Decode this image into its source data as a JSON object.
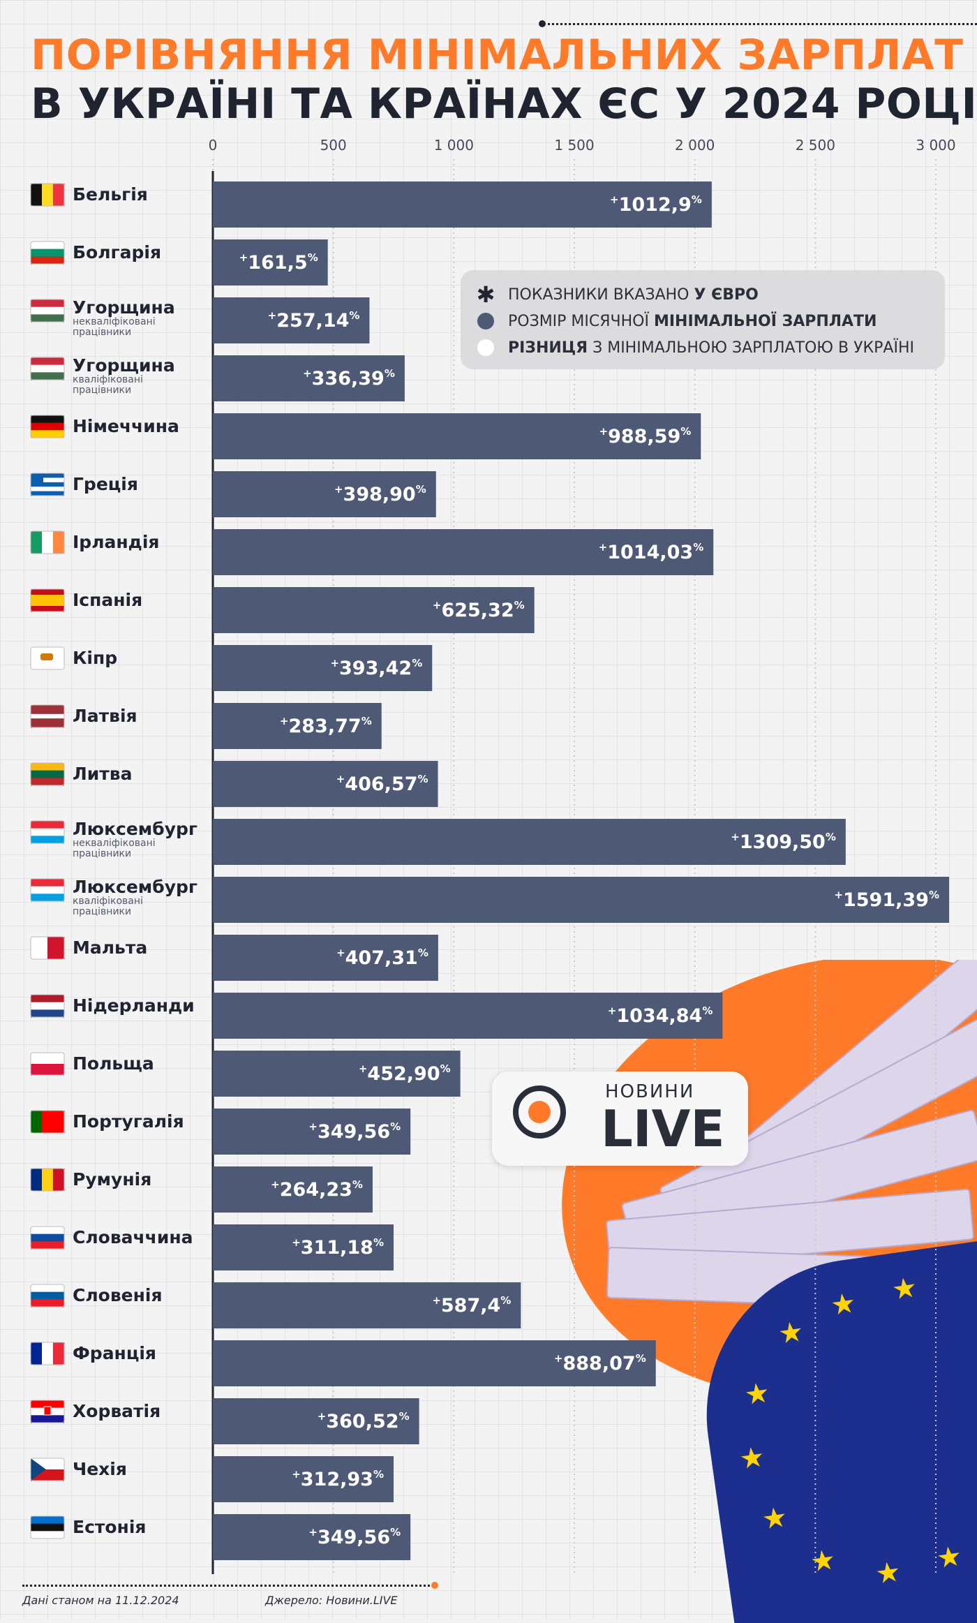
{
  "title": {
    "line1": "Порівняння мінімальних зарплат",
    "line2": "в Україні та країнах ЄС у 2024 році"
  },
  "legend": {
    "item1_pre": "Показники вказано ",
    "item1_bold": "у євро",
    "item2_pre": "Розмір місячної ",
    "item2_bold": "мінімальної зарплати",
    "item3_bold": "Різниця",
    "item3_post": " з мінімальною зарплатою в Україні"
  },
  "logo": {
    "top": "НОВИНИ",
    "main": "LIVE"
  },
  "footer": {
    "date_note": "Дані станом на 11.12.2024",
    "source": "Джерело: Новини.LIVE"
  },
  "colors": {
    "bar": "#4e5a75",
    "accent": "#ff7a29",
    "text": "#1f2430"
  },
  "chart_data": {
    "type": "bar",
    "orientation": "horizontal",
    "title": "Порівняння мінімальних зарплат в Україні та країнах ЄС у 2024 році",
    "xlim": [
      0,
      3000
    ],
    "ticks": [
      {
        "value": 0,
        "label": "0"
      },
      {
        "value": 500,
        "label": "500"
      },
      {
        "value": 1000,
        "label": "1 000"
      },
      {
        "value": 1500,
        "label": "1 500"
      },
      {
        "value": 2000,
        "label": "2 000"
      },
      {
        "value": 2500,
        "label": "2 500"
      },
      {
        "value": 3000,
        "label": "3 000"
      }
    ],
    "categories": [
      {
        "name": "Бельгія",
        "sub": "",
        "flag": "BE",
        "value": 2070,
        "label": "1012,9"
      },
      {
        "name": "Болгарія",
        "sub": "",
        "flag": "BG",
        "value": 477,
        "label": "161,5"
      },
      {
        "name": "Угорщина",
        "sub": "некваліфіковані працівники",
        "flag": "HU",
        "value": 650,
        "label": "257,14"
      },
      {
        "name": "Угорщина",
        "sub": "кваліфіковані працівники",
        "flag": "HU",
        "value": 796,
        "label": "336,39"
      },
      {
        "name": "Німеччина",
        "sub": "",
        "flag": "DE",
        "value": 2025,
        "label": "988,59"
      },
      {
        "name": "Греція",
        "sub": "",
        "flag": "GR",
        "value": 926,
        "label": "398,90"
      },
      {
        "name": "Ірландія",
        "sub": "",
        "flag": "IE",
        "value": 2077,
        "label": "1014,03"
      },
      {
        "name": "Іспанія",
        "sub": "",
        "flag": "ES",
        "value": 1334,
        "label": "625,32"
      },
      {
        "name": "Кіпр",
        "sub": "",
        "flag": "CY",
        "value": 910,
        "label": "393,42"
      },
      {
        "name": "Латвія",
        "sub": "",
        "flag": "LV",
        "value": 700,
        "label": "283,77"
      },
      {
        "name": "Литва",
        "sub": "",
        "flag": "LT",
        "value": 934,
        "label": "406,57"
      },
      {
        "name": "Люксембург",
        "sub": "некваліфіковані працівники",
        "flag": "LU",
        "value": 2626,
        "label": "1309,50"
      },
      {
        "name": "Люксембург",
        "sub": "кваліфіковані працівники",
        "flag": "LU",
        "value": 3150,
        "label": "1591,39"
      },
      {
        "name": "Мальта",
        "sub": "",
        "flag": "MT",
        "value": 935,
        "label": "407,31"
      },
      {
        "name": "Нідерланди",
        "sub": "",
        "flag": "NL",
        "value": 2115,
        "label": "1034,84"
      },
      {
        "name": "Польща",
        "sub": "",
        "flag": "PL",
        "value": 1027,
        "label": "452,90"
      },
      {
        "name": "Португалія",
        "sub": "",
        "flag": "PT",
        "value": 820,
        "label": "349,56"
      },
      {
        "name": "Румунія",
        "sub": "",
        "flag": "RO",
        "value": 663,
        "label": "264,23"
      },
      {
        "name": "Словаччина",
        "sub": "",
        "flag": "SK",
        "value": 750,
        "label": "311,18"
      },
      {
        "name": "Словенія",
        "sub": "",
        "flag": "SI",
        "value": 1278,
        "label": "587,4"
      },
      {
        "name": "Франція",
        "sub": "",
        "flag": "FR",
        "value": 1838,
        "label": "888,07"
      },
      {
        "name": "Хорватія",
        "sub": "",
        "flag": "HR",
        "value": 856,
        "label": "360,52"
      },
      {
        "name": "Чехія",
        "sub": "",
        "flag": "CZ",
        "value": 750,
        "label": "312,93"
      },
      {
        "name": "Естонія",
        "sub": "",
        "flag": "EE",
        "value": 820,
        "label": "349,56"
      }
    ]
  }
}
